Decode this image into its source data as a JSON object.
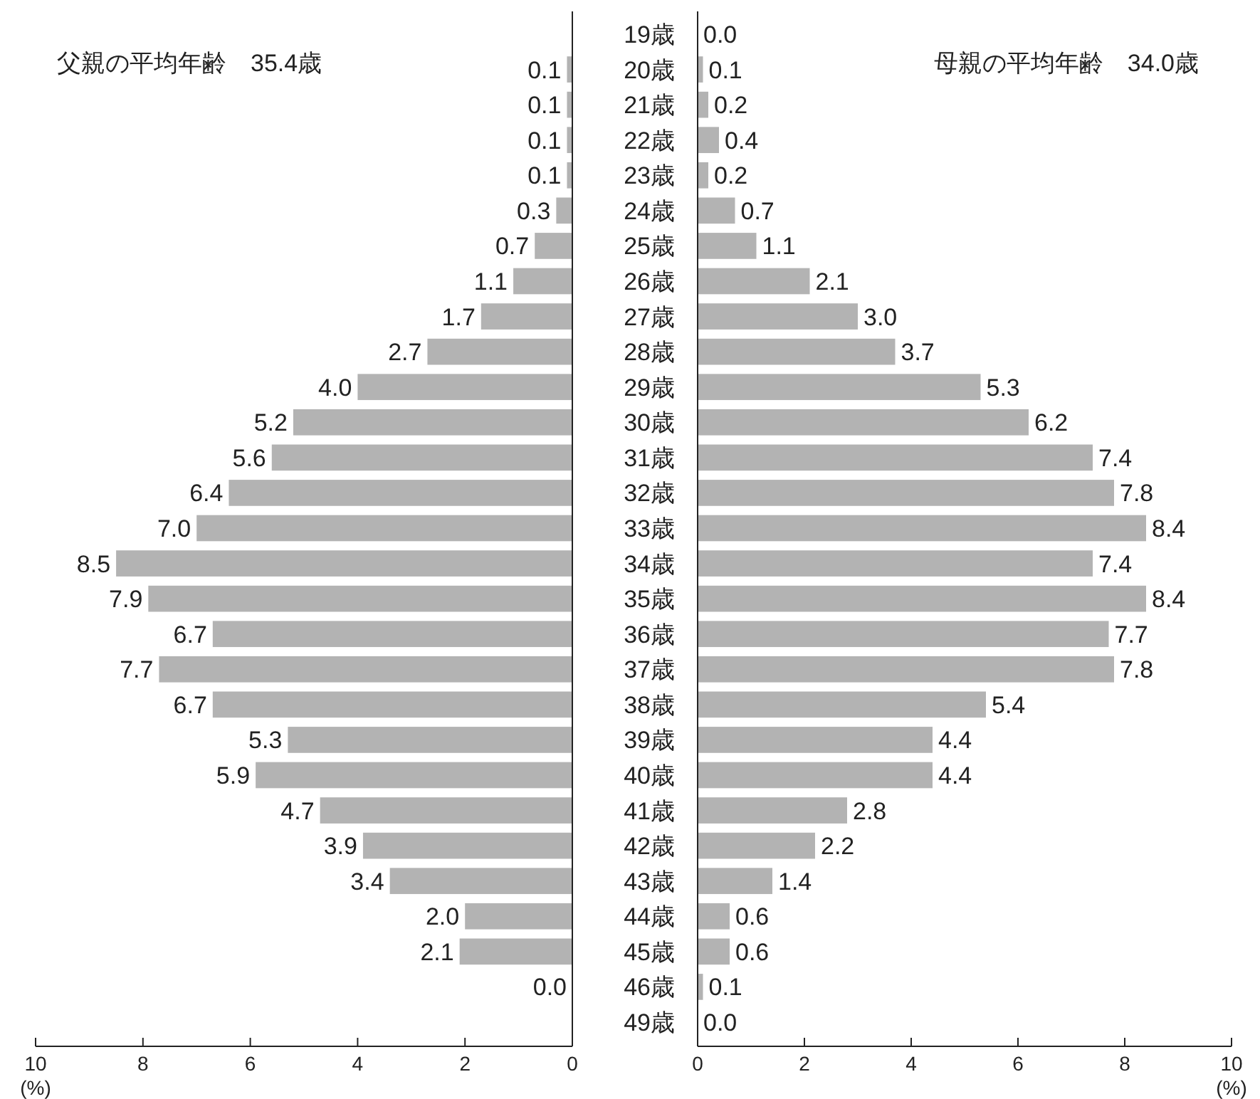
{
  "chart_data": [
    {
      "type": "bar",
      "orientation": "horizontal",
      "title": "父親の平均年齢　35.4歳",
      "xlabel": "(%)",
      "tick_labels": "x",
      "color": "#b3b3b3",
      "xlim": [
        10,
        0
      ],
      "xticks": [
        10,
        8,
        6,
        4,
        2,
        0
      ],
      "categories": [
        null,
        null,
        null,
        null,
        null,
        null,
        null,
        null,
        null,
        null,
        null,
        null,
        null,
        null,
        null,
        null,
        null,
        null,
        null,
        null,
        null,
        null,
        null,
        null,
        null,
        null,
        null,
        null,
        null
      ],
      "values": [
        null,
        0.1,
        0.1,
        0.1,
        0.1,
        0.3,
        0.7,
        1.1,
        1.7,
        2.7,
        4.0,
        5.2,
        5.6,
        6.4,
        7.0,
        8.5,
        7.9,
        6.7,
        7.7,
        6.7,
        5.3,
        5.9,
        4.7,
        3.9,
        3.4,
        2.0,
        2.1,
        0.0,
        null
      ],
      "value_labels": [
        null,
        "0.1",
        "0.1",
        "0.1",
        "0.1",
        "0.3",
        "0.7",
        "1.1",
        "1.7",
        "2.7",
        "4.0",
        "5.2",
        "5.6",
        "6.4",
        "7.0",
        "8.5",
        "7.9",
        "6.7",
        "7.7",
        "6.7",
        "5.3",
        "5.9",
        "4.7",
        "3.9",
        "3.4",
        "2.0",
        "2.1",
        "0.0",
        null
      ]
    },
    {
      "type": "bar",
      "orientation": "horizontal",
      "title": "母親の平均年齢　34.0歳",
      "xlabel": "(%)",
      "color": "#b3b3b3",
      "xlim": [
        0,
        10
      ],
      "xticks": [
        0,
        2,
        4,
        6,
        8,
        10
      ],
      "categories": [
        "19歳",
        "20歳",
        "21歳",
        "22歳",
        "23歳",
        "24歳",
        "25歳",
        "26歳",
        "27歳",
        "28歳",
        "29歳",
        "30歳",
        "31歳",
        "32歳",
        "33歳",
        "34歳",
        "35歳",
        "36歳",
        "37歳",
        "38歳",
        "39歳",
        "40歳",
        "41歳",
        "42歳",
        "43歳",
        "44歳",
        "45歳",
        "46歳",
        "49歳"
      ],
      "values": [
        0.0,
        0.1,
        0.2,
        0.4,
        0.2,
        0.7,
        1.1,
        2.1,
        3.0,
        3.7,
        5.3,
        6.2,
        7.4,
        7.8,
        8.4,
        7.4,
        8.4,
        7.7,
        7.8,
        5.4,
        4.4,
        4.4,
        2.8,
        2.2,
        1.4,
        0.6,
        0.6,
        0.1,
        0.0
      ],
      "value_labels": [
        "0.0",
        "0.1",
        "0.2",
        "0.4",
        "0.2",
        "0.7",
        "1.1",
        "2.1",
        "3.0",
        "3.7",
        "5.3",
        "6.2",
        "7.4",
        "7.8",
        "8.4",
        "7.4",
        "8.4",
        "7.7",
        "7.8",
        "5.4",
        "4.4",
        "4.4",
        "2.8",
        "2.2",
        "1.4",
        "0.6",
        "0.6",
        "0.1",
        "0.0"
      ]
    }
  ]
}
